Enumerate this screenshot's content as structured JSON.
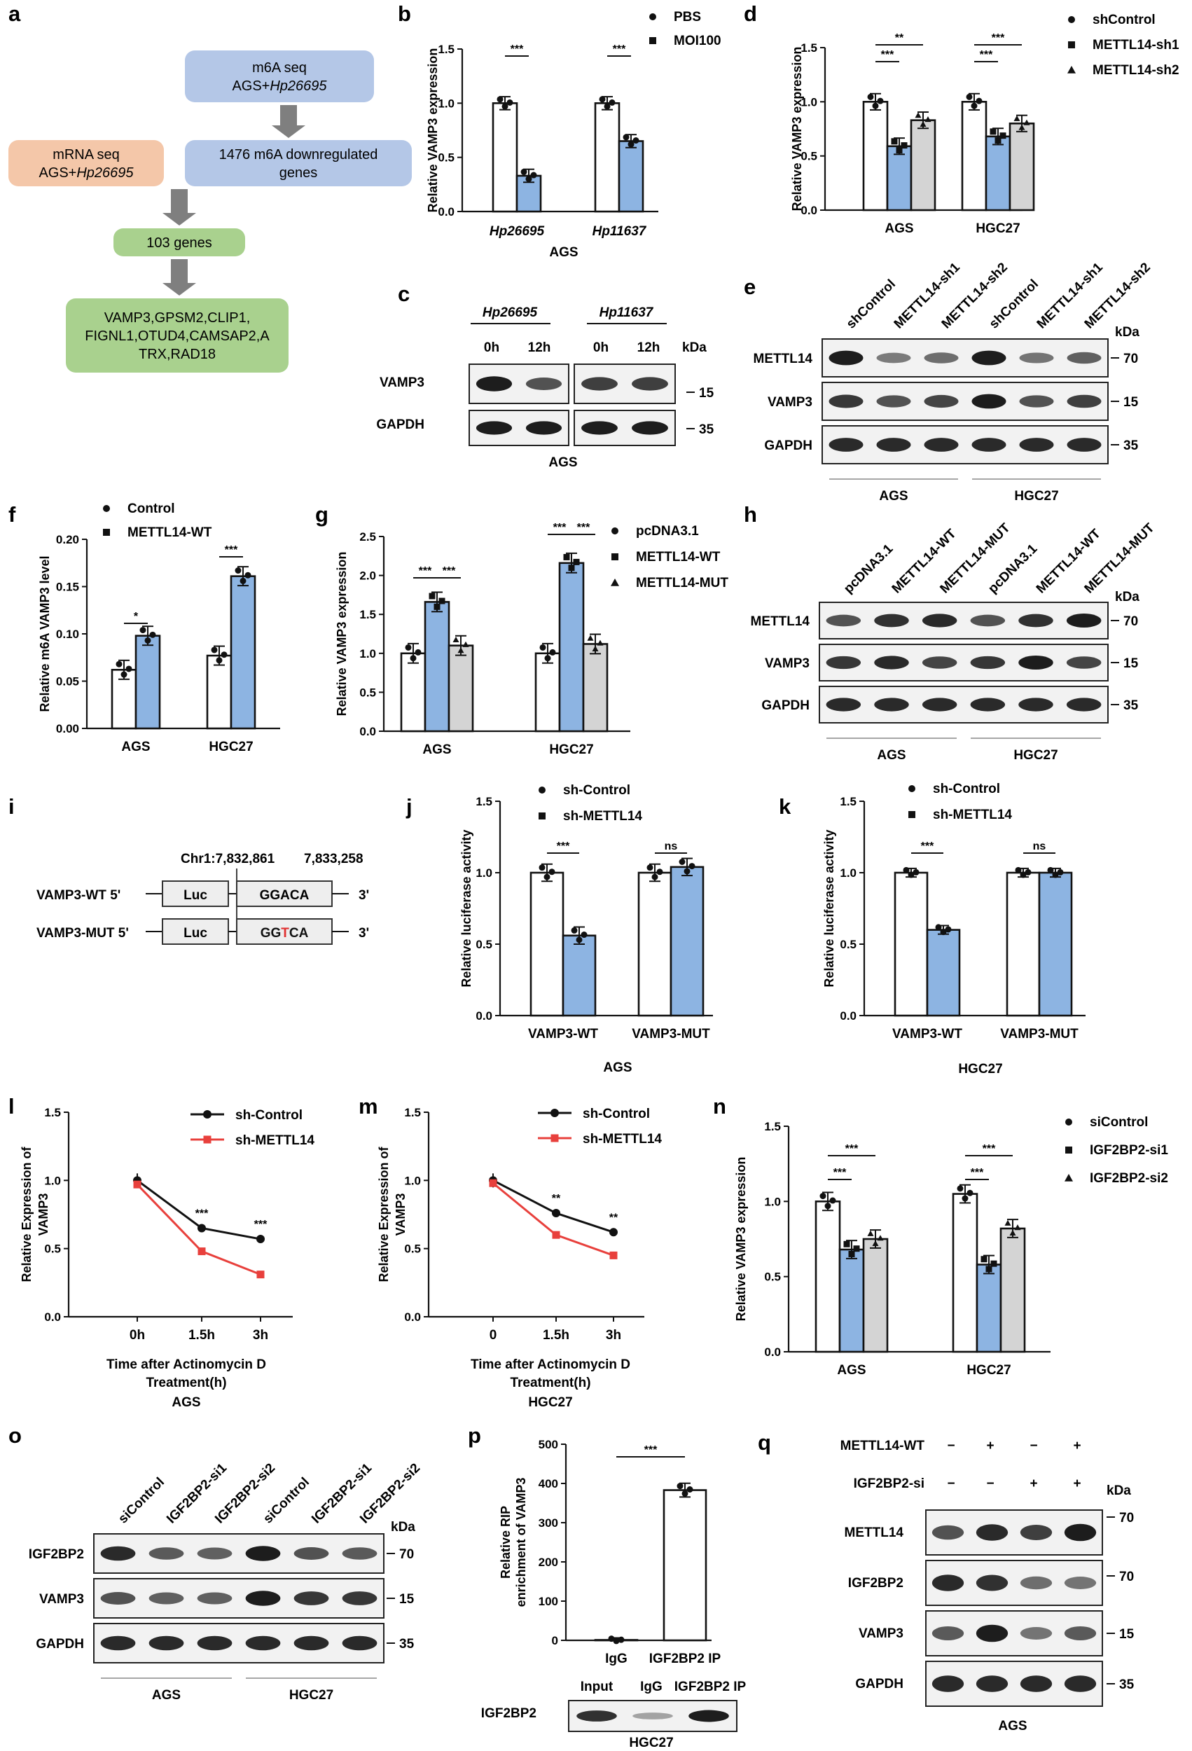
{
  "panel_labels": [
    "a",
    "b",
    "c",
    "d",
    "e",
    "f",
    "g",
    "h",
    "i",
    "j",
    "k",
    "l",
    "m",
    "n",
    "o",
    "p",
    "q"
  ],
  "colors": {
    "white_bar": "#ffffff",
    "blue_bar": "#8db4e2",
    "gray_bar": "#d4d4d4",
    "black_line": "#111111",
    "red_line": "#e8403c",
    "box_blue": "#b4c7e7",
    "box_orange": "#f4c7a9",
    "box_green": "#a9d18e",
    "arrow": "#7f7f7f",
    "mut_red": "#e03030"
  },
  "flowchart": {
    "box1": [
      "m6A seq",
      "AGS+Hp26695"
    ],
    "box2": [
      "mRNA seq",
      "AGS+Hp26695"
    ],
    "box3": [
      "1476 m6A downregulated",
      "genes"
    ],
    "box4": "103 genes",
    "box5": [
      "VAMP3,GPSM2,CLIP1,",
      "FIGNL1,OTUD4,CAMSAP2,A",
      "TRX,RAD18"
    ]
  },
  "chart_data": [
    {
      "id": "b",
      "type": "bar",
      "ylabel": "Relative VAMP3 expression",
      "ylim": [
        0,
        1.5
      ],
      "yticks": [
        "0.0",
        "0.5",
        "1.0",
        "1.5"
      ],
      "categories": [
        "Hp26695",
        "Hp11637"
      ],
      "xtitle": "AGS",
      "series": [
        {
          "name": "PBS",
          "values": [
            1.0,
            1.0
          ]
        },
        {
          "name": "MOI100",
          "values": [
            0.33,
            0.65
          ]
        }
      ],
      "sig": [
        "***",
        "***"
      ]
    },
    {
      "id": "d",
      "type": "bar",
      "ylabel": "Relative VAMP3 expression",
      "ylim": [
        0,
        1.5
      ],
      "yticks": [
        "0.0",
        "0.5",
        "1.0",
        "1.5"
      ],
      "categories": [
        "AGS",
        "HGC27"
      ],
      "series": [
        {
          "name": "shControl",
          "values": [
            1.0,
            1.0
          ]
        },
        {
          "name": "METTL14-sh1",
          "values": [
            0.59,
            0.68
          ]
        },
        {
          "name": "METTL14-sh2",
          "values": [
            0.83,
            0.8
          ]
        }
      ],
      "sig": [
        "***",
        "**",
        "***",
        "***"
      ]
    },
    {
      "id": "f",
      "type": "bar",
      "ylabel": "Relative m6A VAMP3 level",
      "ylim": [
        0,
        0.2
      ],
      "yticks": [
        "0.00",
        "0.05",
        "0.10",
        "0.15",
        "0.20"
      ],
      "categories": [
        "AGS",
        "HGC27"
      ],
      "series": [
        {
          "name": "Control",
          "values": [
            0.062,
            0.077
          ]
        },
        {
          "name": "METTL14-WT",
          "values": [
            0.098,
            0.161
          ]
        }
      ],
      "sig": [
        "*",
        "***"
      ]
    },
    {
      "id": "g",
      "type": "bar",
      "ylabel": "Relative VAMP3 expression",
      "ylim": [
        0,
        2.5
      ],
      "yticks": [
        "0.0",
        "0.5",
        "1.0",
        "1.5",
        "2.0",
        "2.5"
      ],
      "categories": [
        "AGS",
        "HGC27"
      ],
      "series": [
        {
          "name": "pcDNA3.1",
          "values": [
            1.0,
            1.0
          ]
        },
        {
          "name": "METTL14-WT",
          "values": [
            1.66,
            2.16
          ]
        },
        {
          "name": "METTL14-MUT",
          "values": [
            1.1,
            1.12
          ]
        }
      ],
      "sig": [
        "***",
        "***",
        "***",
        "***"
      ]
    },
    {
      "id": "j",
      "type": "bar",
      "ylabel": "Relative luciferase activity",
      "ylim": [
        0,
        1.5
      ],
      "yticks": [
        "0.0",
        "0.5",
        "1.0",
        "1.5"
      ],
      "categories": [
        "VAMP3-WT",
        "VAMP3-MUT"
      ],
      "xtitle": "AGS",
      "series": [
        {
          "name": "sh-Control",
          "values": [
            1.0,
            1.0
          ]
        },
        {
          "name": "sh-METTL14",
          "values": [
            0.56,
            1.04
          ]
        }
      ],
      "sig": [
        "***",
        "ns"
      ]
    },
    {
      "id": "k",
      "type": "bar",
      "ylabel": "Relative luciferase activity",
      "ylim": [
        0,
        1.5
      ],
      "yticks": [
        "0.0",
        "0.5",
        "1.0",
        "1.5"
      ],
      "categories": [
        "VAMP3-WT",
        "VAMP3-MUT"
      ],
      "xtitle": "HGC27",
      "series": [
        {
          "name": "sh-Control",
          "values": [
            1.0,
            1.0
          ]
        },
        {
          "name": "sh-METTL14",
          "values": [
            0.6,
            1.0
          ]
        }
      ],
      "sig": [
        "***",
        "ns"
      ]
    },
    {
      "id": "l",
      "type": "line",
      "ylabel": [
        "Relative Expression of",
        "VAMP3"
      ],
      "ylim": [
        0,
        1.5
      ],
      "yticks": [
        "0.0",
        "0.5",
        "1.0",
        "1.5"
      ],
      "x": [
        "0h",
        "1.5h",
        "3h"
      ],
      "xlabel": [
        "Time after Actinomycin D",
        "Treatment(h)"
      ],
      "xtitle": "AGS",
      "series": [
        {
          "name": "sh-Control",
          "values": [
            1.0,
            0.65,
            0.57
          ]
        },
        {
          "name": "sh-METTL14",
          "values": [
            0.97,
            0.48,
            0.31
          ]
        }
      ],
      "sig": [
        "***",
        "***"
      ]
    },
    {
      "id": "m",
      "type": "line",
      "ylabel": [
        "Relative Expression of",
        "VAMP3"
      ],
      "ylim": [
        0,
        1.5
      ],
      "yticks": [
        "0.0",
        "0.5",
        "1.0",
        "1.5"
      ],
      "x": [
        "0",
        "1.5h",
        "3h"
      ],
      "xlabel": [
        "Time after Actinomycin D",
        "Treatment(h)"
      ],
      "xtitle": "HGC27",
      "series": [
        {
          "name": "sh-Control",
          "values": [
            1.0,
            0.76,
            0.62
          ]
        },
        {
          "name": "sh-METTL14",
          "values": [
            0.98,
            0.6,
            0.45
          ]
        }
      ],
      "sig": [
        "**",
        "**"
      ]
    },
    {
      "id": "n",
      "type": "bar",
      "ylabel": "Relative VAMP3 expression",
      "ylim": [
        0,
        1.5
      ],
      "yticks": [
        "0.0",
        "0.5",
        "1.0",
        "1.5"
      ],
      "categories": [
        "AGS",
        "HGC27"
      ],
      "series": [
        {
          "name": "siControl",
          "values": [
            1.0,
            1.05
          ]
        },
        {
          "name": "IGF2BP2-si1",
          "values": [
            0.68,
            0.58
          ]
        },
        {
          "name": "IGF2BP2-si2",
          "values": [
            0.75,
            0.82
          ]
        }
      ],
      "sig": [
        "***",
        "***",
        "***",
        "***"
      ]
    },
    {
      "id": "p",
      "type": "bar",
      "ylabel": [
        "Relative RIP",
        "enrichment of VAMP3"
      ],
      "ylim": [
        0,
        500
      ],
      "yticks": [
        "0",
        "100",
        "200",
        "300",
        "400",
        "500"
      ],
      "categories": [
        "IgG",
        "IGF2BP2 IP"
      ],
      "series": [
        {
          "values": [
            1,
            383
          ]
        }
      ],
      "sig": [
        "***"
      ]
    }
  ],
  "blots": {
    "c": {
      "groups": [
        "Hp26695",
        "Hp11637"
      ],
      "times": [
        "0h",
        "12h",
        "0h",
        "12h"
      ],
      "rows": [
        "VAMP3",
        "GAPDH"
      ],
      "kda": [
        "15",
        "35"
      ],
      "unit": "kDa",
      "cell": "AGS"
    },
    "e": {
      "lanes": [
        "shControl",
        "METTL14-sh1",
        "METTL14-sh2",
        "shControl",
        "METTL14-sh1",
        "METTL14-sh2"
      ],
      "rows": [
        "METTL14",
        "VAMP3",
        "GAPDH"
      ],
      "kda": [
        "70",
        "15",
        "35"
      ],
      "unit": "kDa",
      "cells": [
        "AGS",
        "HGC27"
      ]
    },
    "h": {
      "lanes": [
        "pcDNA3.1",
        "METTL14-WT",
        "METTL14-MUT",
        "pcDNA3.1",
        "METTL14-WT",
        "METTL14-MUT"
      ],
      "rows": [
        "METTL14",
        "VAMP3",
        "GAPDH"
      ],
      "kda": [
        "70",
        "15",
        "35"
      ],
      "unit": "kDa",
      "cells": [
        "AGS",
        "HGC27"
      ]
    },
    "o": {
      "lanes": [
        "siControl",
        "IGF2BP2-si1",
        "IGF2BP2-si2",
        "siControl",
        "IGF2BP2-si1",
        "IGF2BP2-si2"
      ],
      "rows": [
        "IGF2BP2",
        "VAMP3",
        "GAPDH"
      ],
      "kda": [
        "70",
        "15",
        "35"
      ],
      "unit": "kDa",
      "cells": [
        "AGS",
        "HGC27"
      ]
    },
    "p": {
      "lanes": [
        "Input",
        "IgG",
        "IGF2BP2 IP"
      ],
      "row": "IGF2BP2",
      "cell": "HGC27"
    },
    "q": {
      "conds": [
        {
          "label": "METTL14-WT",
          "signs": [
            "−",
            "+",
            "−",
            "+"
          ]
        },
        {
          "label": "IGF2BP2-si",
          "signs": [
            "−",
            "−",
            "+",
            "+"
          ]
        }
      ],
      "rows": [
        "METTL14",
        "IGF2BP2",
        "VAMP3",
        "GAPDH"
      ],
      "kda": [
        "70",
        "70",
        "15",
        "35"
      ],
      "unit": "kDa",
      "cell": "AGS"
    }
  },
  "construct": {
    "coord1": "Chr1:7,832,861",
    "coord2": "7,833,258",
    "wt": {
      "label": "VAMP3-WT 5'",
      "luc": "Luc",
      "seq": "GGACA",
      "end": "3'"
    },
    "mut": {
      "label": "VAMP3-MUT 5'",
      "luc": "Luc",
      "seq_pre": "GG",
      "seq_mut": "T",
      "seq_post": "CA",
      "end": "3'"
    }
  }
}
